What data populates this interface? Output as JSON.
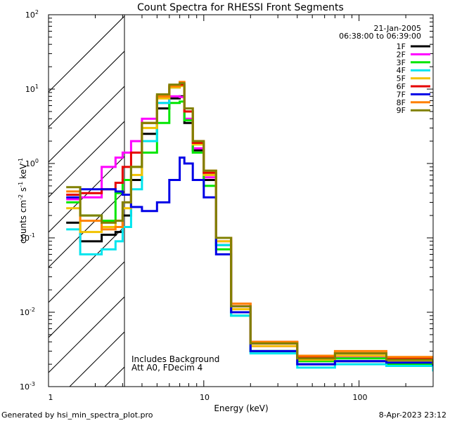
{
  "chart_data": {
    "type": "line",
    "title": "Count Spectra for RHESSI Front Segments",
    "xlabel": "Energy (keV)",
    "ylabel": "counts cm^-2 s^-1 keV^-1",
    "xscale": "log",
    "yscale": "log",
    "xlim": [
      1,
      300
    ],
    "ylim": [
      0.001,
      100
    ],
    "x_tick_labels": [
      {
        "value": 1,
        "label": "1"
      },
      {
        "value": 10,
        "label": "10"
      },
      {
        "value": 100,
        "label": "100"
      }
    ],
    "y_tick_labels": [
      {
        "value": 0.001,
        "base": "10",
        "exp": "-3"
      },
      {
        "value": 0.01,
        "base": "10",
        "exp": "-2"
      },
      {
        "value": 0.1,
        "base": "10",
        "exp": "-1"
      },
      {
        "value": 1,
        "base": "10",
        "exp": "0"
      },
      {
        "value": 10,
        "base": "10",
        "exp": "1"
      },
      {
        "value": 100,
        "base": "10",
        "exp": "2"
      }
    ],
    "hatched_region": {
      "x_start": 1,
      "x_end": 3
    },
    "date": "21-Jan-2005",
    "time_range": "06:38:00 to 06:39:00",
    "annotation_lines": [
      "Includes Background",
      "Att A0, FDecim 4"
    ],
    "series": [
      {
        "name": "1F",
        "color": "#000000",
        "points": [
          [
            1.3,
            0.16
          ],
          [
            1.6,
            0.09
          ],
          [
            2.2,
            0.11
          ],
          [
            2.7,
            0.12
          ],
          [
            3.0,
            0.2
          ],
          [
            3.4,
            0.6
          ],
          [
            4.0,
            2.5
          ],
          [
            5.0,
            5.5
          ],
          [
            6.0,
            7.5
          ],
          [
            7.0,
            8.0
          ],
          [
            7.5,
            3.5
          ],
          [
            8.5,
            1.5
          ],
          [
            10,
            0.6
          ],
          [
            12,
            0.08
          ],
          [
            15,
            0.01
          ],
          [
            20,
            0.003
          ],
          [
            40,
            0.002
          ],
          [
            70,
            0.0022
          ],
          [
            150,
            0.002
          ],
          [
            300,
            0.0018
          ]
        ]
      },
      {
        "name": "2F",
        "color": "#ff00ff",
        "points": [
          [
            1.3,
            0.33
          ],
          [
            1.6,
            0.35
          ],
          [
            2.2,
            0.9
          ],
          [
            2.7,
            1.2
          ],
          [
            3.0,
            1.4
          ],
          [
            3.4,
            2.0
          ],
          [
            4.0,
            4.0
          ],
          [
            5.0,
            6.5
          ],
          [
            6.0,
            8.0
          ],
          [
            7.0,
            7.8
          ],
          [
            7.5,
            4.0
          ],
          [
            8.5,
            1.6
          ],
          [
            10,
            0.65
          ],
          [
            12,
            0.09
          ],
          [
            15,
            0.012
          ],
          [
            20,
            0.0035
          ],
          [
            40,
            0.002
          ],
          [
            70,
            0.0025
          ],
          [
            150,
            0.0021
          ],
          [
            300,
            0.0019
          ]
        ]
      },
      {
        "name": "3F",
        "color": "#00e600",
        "points": [
          [
            1.3,
            0.3
          ],
          [
            1.6,
            0.2
          ],
          [
            2.2,
            0.17
          ],
          [
            2.7,
            0.4
          ],
          [
            3.0,
            0.6
          ],
          [
            3.4,
            0.9
          ],
          [
            4.0,
            1.4
          ],
          [
            5.0,
            3.5
          ],
          [
            6.0,
            6.5
          ],
          [
            7.0,
            6.8
          ],
          [
            7.5,
            3.8
          ],
          [
            8.5,
            1.4
          ],
          [
            10,
            0.5
          ],
          [
            12,
            0.07
          ],
          [
            15,
            0.009
          ],
          [
            20,
            0.003
          ],
          [
            40,
            0.0022
          ],
          [
            70,
            0.0024
          ],
          [
            150,
            0.002
          ],
          [
            300,
            0.0017
          ]
        ]
      },
      {
        "name": "4F",
        "color": "#00e5ee",
        "points": [
          [
            1.3,
            0.13
          ],
          [
            1.6,
            0.06
          ],
          [
            2.2,
            0.07
          ],
          [
            2.7,
            0.09
          ],
          [
            3.0,
            0.14
          ],
          [
            3.4,
            0.45
          ],
          [
            4.0,
            2.0
          ],
          [
            5.0,
            6.5
          ],
          [
            6.0,
            10.5
          ],
          [
            7.0,
            11.5
          ],
          [
            7.5,
            5.0
          ],
          [
            8.5,
            1.8
          ],
          [
            10,
            0.7
          ],
          [
            12,
            0.08
          ],
          [
            15,
            0.009
          ],
          [
            20,
            0.0028
          ],
          [
            40,
            0.0018
          ],
          [
            70,
            0.002
          ],
          [
            150,
            0.0019
          ],
          [
            300,
            0.0016
          ]
        ]
      },
      {
        "name": "5F",
        "color": "#f2c200",
        "points": [
          [
            1.3,
            0.25
          ],
          [
            1.6,
            0.12
          ],
          [
            2.2,
            0.14
          ],
          [
            2.7,
            0.17
          ],
          [
            3.0,
            0.25
          ],
          [
            3.4,
            0.7
          ],
          [
            4.0,
            3.0
          ],
          [
            5.0,
            7.5
          ],
          [
            6.0,
            10.5
          ],
          [
            7.0,
            11.0
          ],
          [
            7.5,
            5.0
          ],
          [
            8.5,
            1.8
          ],
          [
            10,
            0.7
          ],
          [
            12,
            0.09
          ],
          [
            15,
            0.011
          ],
          [
            20,
            0.0035
          ],
          [
            40,
            0.0023
          ],
          [
            70,
            0.0026
          ],
          [
            150,
            0.0022
          ],
          [
            300,
            0.0019
          ]
        ]
      },
      {
        "name": "6F",
        "color": "#e60000",
        "points": [
          [
            1.3,
            0.38
          ],
          [
            1.6,
            0.4
          ],
          [
            2.2,
            0.45
          ],
          [
            2.7,
            0.55
          ],
          [
            3.0,
            0.9
          ],
          [
            3.4,
            1.4
          ],
          [
            4.0,
            3.5
          ],
          [
            5.0,
            8.0
          ],
          [
            6.0,
            11.0
          ],
          [
            7.0,
            11.5
          ],
          [
            7.5,
            5.0
          ],
          [
            8.5,
            1.9
          ],
          [
            10,
            0.75
          ],
          [
            12,
            0.1
          ],
          [
            15,
            0.013
          ],
          [
            20,
            0.004
          ],
          [
            40,
            0.0025
          ],
          [
            70,
            0.0028
          ],
          [
            150,
            0.0024
          ],
          [
            300,
            0.002
          ]
        ]
      },
      {
        "name": "7F",
        "color": "#0000e6",
        "points": [
          [
            1.3,
            0.35
          ],
          [
            1.6,
            0.45
          ],
          [
            2.2,
            0.45
          ],
          [
            2.7,
            0.42
          ],
          [
            3.0,
            0.38
          ],
          [
            3.4,
            0.26
          ],
          [
            4.0,
            0.23
          ],
          [
            5.0,
            0.3
          ],
          [
            6.0,
            0.6
          ],
          [
            7.0,
            1.2
          ],
          [
            7.5,
            1.0
          ],
          [
            8.5,
            0.6
          ],
          [
            10,
            0.35
          ],
          [
            12,
            0.06
          ],
          [
            15,
            0.01
          ],
          [
            20,
            0.003
          ],
          [
            40,
            0.002
          ],
          [
            70,
            0.0022
          ],
          [
            150,
            0.0021
          ],
          [
            300,
            0.0019
          ]
        ]
      },
      {
        "name": "8F",
        "color": "#ff8000",
        "points": [
          [
            1.3,
            0.42
          ],
          [
            1.6,
            0.17
          ],
          [
            2.2,
            0.13
          ],
          [
            2.7,
            0.14
          ],
          [
            3.0,
            0.3
          ],
          [
            3.4,
            0.9
          ],
          [
            4.0,
            3.5
          ],
          [
            5.0,
            8.0
          ],
          [
            6.0,
            11.0
          ],
          [
            7.0,
            12.5
          ],
          [
            7.5,
            5.5
          ],
          [
            8.5,
            2.0
          ],
          [
            10,
            0.8
          ],
          [
            12,
            0.1
          ],
          [
            15,
            0.013
          ],
          [
            20,
            0.004
          ],
          [
            40,
            0.0026
          ],
          [
            70,
            0.003
          ],
          [
            150,
            0.0025
          ],
          [
            300,
            0.0021
          ]
        ]
      },
      {
        "name": "9F",
        "color": "#808000",
        "points": [
          [
            1.3,
            0.48
          ],
          [
            1.6,
            0.2
          ],
          [
            2.2,
            0.16
          ],
          [
            2.7,
            0.17
          ],
          [
            3.0,
            0.3
          ],
          [
            3.4,
            0.9
          ],
          [
            4.0,
            3.5
          ],
          [
            5.0,
            8.5
          ],
          [
            6.0,
            11.5
          ],
          [
            7.0,
            12.0
          ],
          [
            7.5,
            5.5
          ],
          [
            8.5,
            2.0
          ],
          [
            10,
            0.8
          ],
          [
            12,
            0.1
          ],
          [
            15,
            0.012
          ],
          [
            20,
            0.0038
          ],
          [
            40,
            0.0024
          ],
          [
            70,
            0.0028
          ],
          [
            150,
            0.0023
          ],
          [
            300,
            0.002
          ]
        ]
      }
    ]
  },
  "footer": {
    "generated_by": "Generated by hsi_min_spectra_plot.pro",
    "timestamp": "8-Apr-2023 23:12"
  }
}
